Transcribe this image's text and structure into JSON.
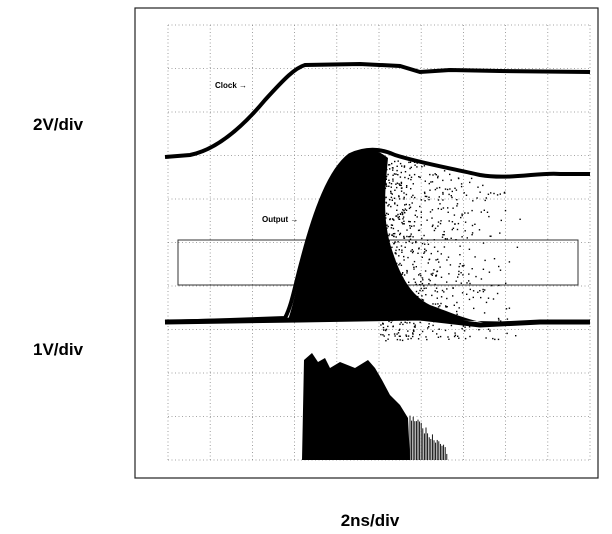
{
  "scale_labels": {
    "top_channel": "2V/div",
    "bottom_channel": "1V/div",
    "time": "2ns/div"
  },
  "trace_labels": {
    "clock": "Clock →",
    "output": "Output →"
  }
}
